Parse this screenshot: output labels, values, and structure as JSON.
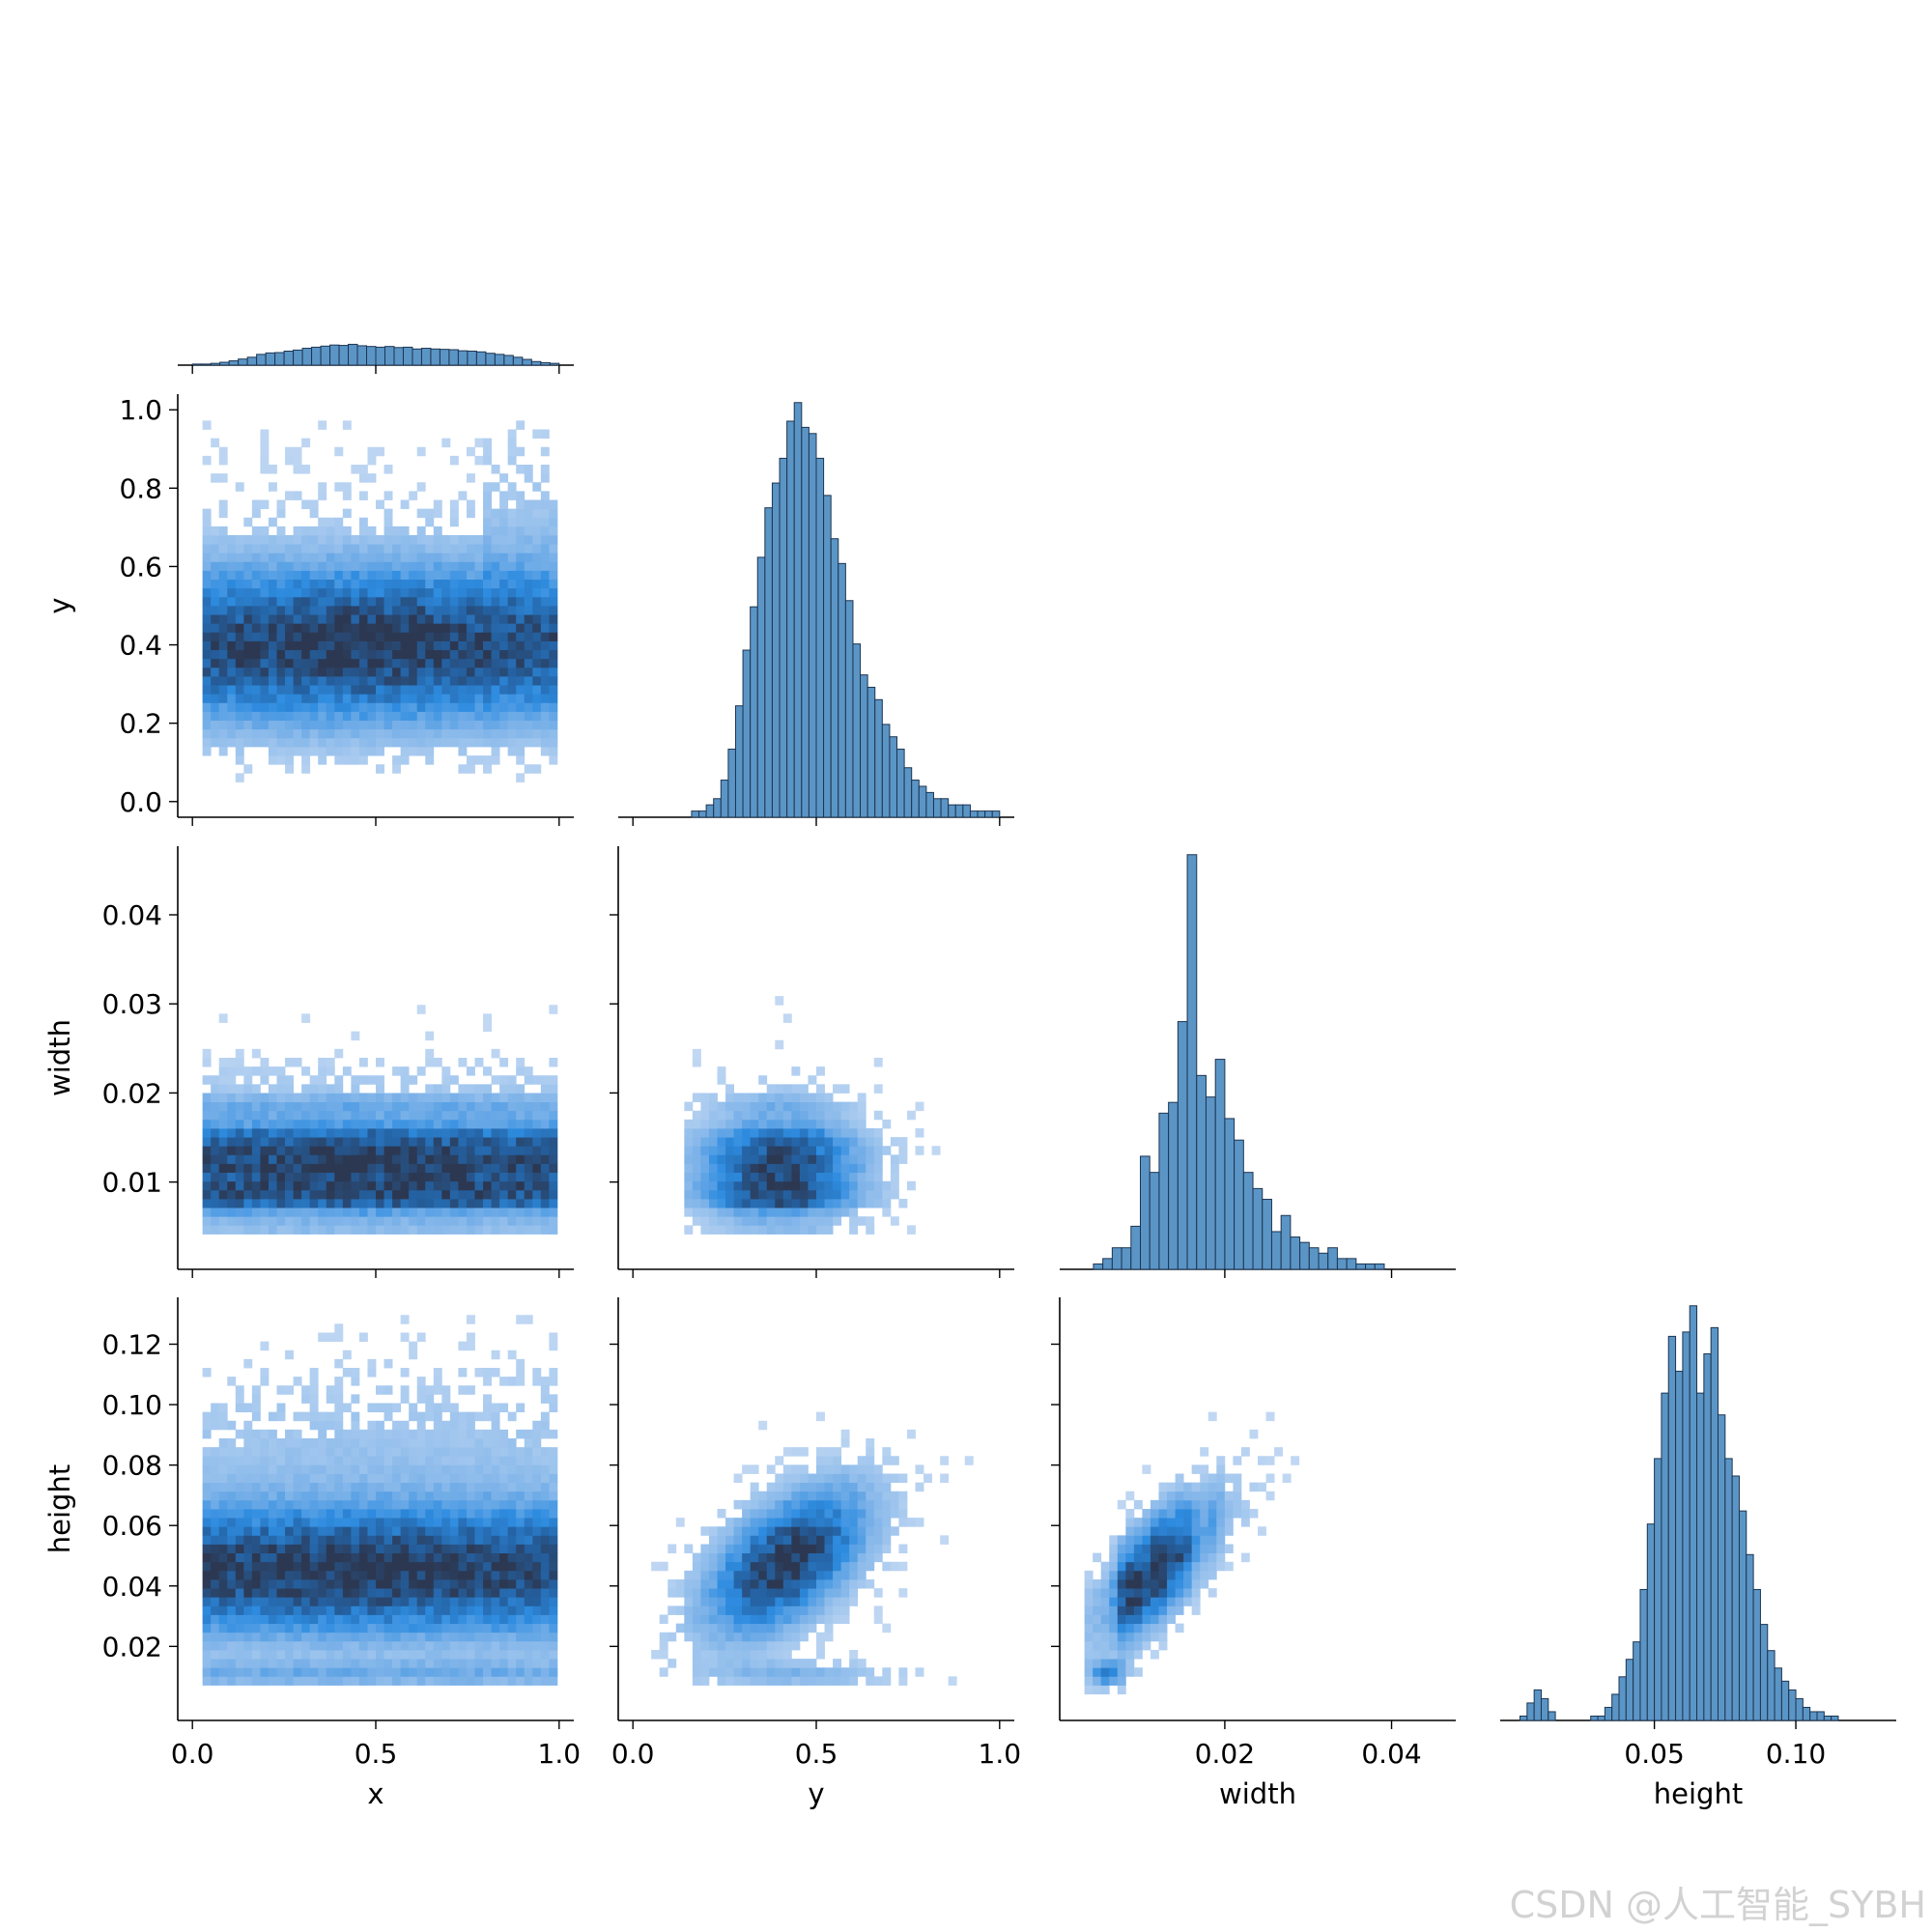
{
  "chart_data": {
    "type": "heatmap",
    "kind": "seaborn-pairplot-corner",
    "variables": [
      "x",
      "y",
      "width",
      "height"
    ],
    "axis_labels": {
      "x": "x",
      "y": "y",
      "width": "width",
      "height": "height"
    },
    "ranges": {
      "x": [
        -0.04,
        1.04
      ],
      "y": [
        -0.04,
        1.04
      ],
      "width": [
        0.0002,
        0.0477
      ],
      "height": [
        -0.0045,
        0.1355
      ]
    },
    "ticks": {
      "x": {
        "values": [
          0.0,
          0.5,
          1.0
        ],
        "labels": [
          "0.0",
          "0.5",
          "1.0"
        ]
      },
      "y_bottom": {
        "values": [
          0.0,
          0.5,
          1.0
        ],
        "labels": [
          "0.0",
          "0.5",
          "1.0"
        ]
      },
      "y_left": {
        "values": [
          0.0,
          0.2,
          0.4,
          0.6,
          0.8,
          1.0
        ],
        "labels": [
          "0.0",
          "0.2",
          "0.4",
          "0.6",
          "0.8",
          "1.0"
        ]
      },
      "width": {
        "values": [
          0.01,
          0.02,
          0.03,
          0.04
        ],
        "labels": [
          "0.01",
          "0.02",
          "0.03",
          "0.04"
        ]
      },
      "width_bottom": {
        "values": [
          0.02,
          0.04
        ],
        "labels": [
          "0.02",
          "0.04"
        ]
      },
      "height": {
        "values": [
          0.02,
          0.04,
          0.06,
          0.08,
          0.1,
          0.12
        ],
        "labels": [
          "0.02",
          "0.04",
          "0.06",
          "0.08",
          "0.10",
          "0.12"
        ]
      },
      "height_bottom": {
        "values": [
          0.05,
          0.1
        ],
        "labels": [
          "0.05",
          "0.10"
        ]
      }
    },
    "histograms": {
      "x": {
        "range": [
          0.0,
          1.0
        ],
        "counts": [
          3,
          3,
          5,
          8,
          12,
          17,
          22,
          30,
          34,
          35,
          39,
          42,
          47,
          50,
          53,
          56,
          55,
          58,
          54,
          52,
          50,
          52,
          49,
          50,
          45,
          47,
          45,
          44,
          43,
          40,
          39,
          37,
          33,
          30,
          27,
          22,
          16,
          10,
          7,
          5
        ]
      },
      "y": {
        "range": [
          0.0,
          1.0
        ],
        "counts": [
          0,
          0,
          0,
          0,
          0,
          0,
          0,
          0,
          1,
          1,
          2,
          3,
          6,
          11,
          18,
          27,
          34,
          42,
          50,
          54,
          58,
          64,
          67,
          63,
          62,
          58,
          52,
          45,
          41,
          35,
          28,
          23,
          21,
          19,
          15,
          13,
          11,
          8,
          6,
          5,
          4,
          3,
          3,
          2,
          2,
          2,
          1,
          1,
          1,
          1
        ]
      },
      "width": {
        "range": [
          0.002,
          0.047
        ],
        "counts": [
          0,
          0,
          1,
          2,
          4,
          4,
          8,
          21,
          18,
          29,
          31,
          46,
          77,
          36,
          32,
          39,
          28,
          24,
          18,
          15,
          13,
          7,
          10,
          6,
          5,
          4,
          3,
          4,
          2,
          2,
          1,
          1,
          1,
          0,
          0,
          0,
          0,
          0,
          0,
          0
        ]
      },
      "height": {
        "range": [
          0.0,
          0.13
        ],
        "counts": [
          0,
          1,
          4,
          7,
          5,
          2,
          0,
          0,
          0,
          0,
          0,
          1,
          1,
          3,
          6,
          10,
          14,
          18,
          30,
          45,
          60,
          75,
          88,
          80,
          89,
          95,
          75,
          84,
          90,
          70,
          60,
          56,
          48,
          38,
          30,
          22,
          16,
          12,
          9,
          7,
          5,
          3,
          2,
          2,
          1,
          1,
          0,
          0,
          0,
          0,
          0,
          0
        ]
      }
    },
    "density_modes": {
      "x_y": {
        "center": [
          0.45,
          0.4
        ]
      },
      "x_width": {
        "center": [
          0.5,
          0.01
        ]
      },
      "y_width": {
        "center": [
          0.4,
          0.01
        ]
      },
      "x_height": {
        "center": [
          0.5,
          0.043
        ]
      },
      "y_height": {
        "center": [
          0.4,
          0.045
        ]
      },
      "width_height": {
        "center": [
          0.01,
          0.045
        ]
      }
    },
    "color": "#1f77b4",
    "grid": false,
    "legend": "none"
  },
  "watermark": "CSDN @人工智能_SYBH"
}
